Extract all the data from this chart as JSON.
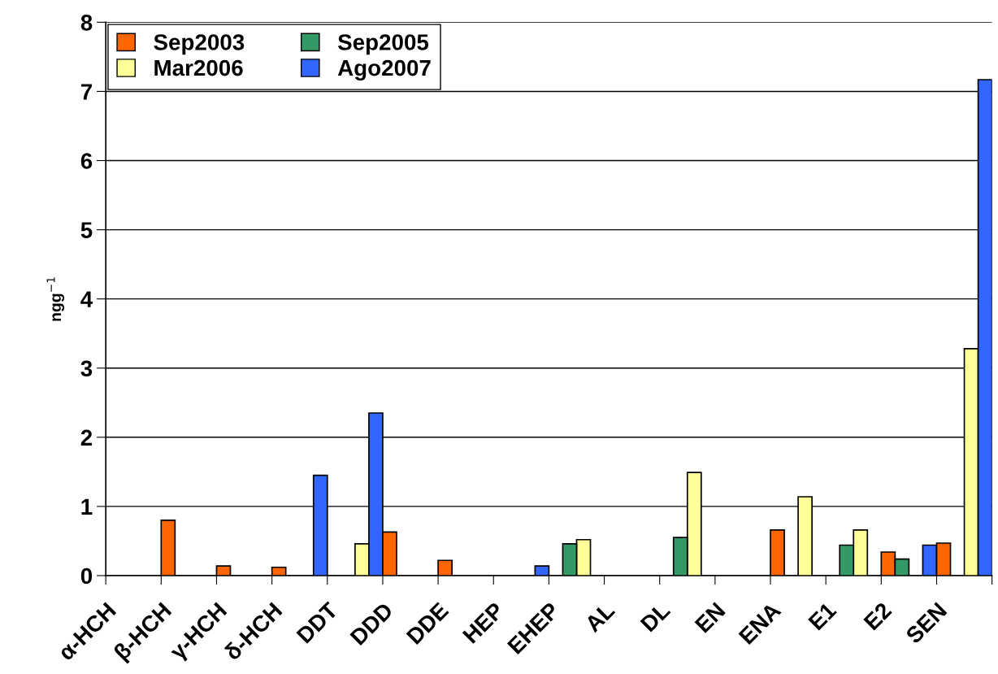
{
  "chart_data": {
    "type": "bar",
    "ylabel": "ngg$^{−1}$",
    "categories": [
      "α-HCH",
      "β-HCH",
      "γ-HCH",
      "δ-HCH",
      "DDT",
      "DDD",
      "DDE",
      "HEP",
      "EHEP",
      "AL",
      "DL",
      "EN",
      "ENA",
      "E1",
      "E2",
      "SEN",
      null
    ],
    "series": [
      {
        "name": "Mar2006",
        "color": "#ffff99",
        "values": [
          null,
          null,
          null,
          null,
          null,
          0.46,
          null,
          null,
          null,
          0.52,
          null,
          1.49,
          null,
          1.14,
          0.66,
          null,
          3.28
        ]
      },
      {
        "name": "Ago2007",
        "color": "#3366ff",
        "values": [
          null,
          null,
          null,
          null,
          1.45,
          2.35,
          null,
          null,
          0.14,
          null,
          null,
          null,
          null,
          null,
          null,
          0.44,
          7.17
        ]
      },
      {
        "name": "Sep2003",
        "color": "#ff6600",
        "values": [
          null,
          0.8,
          0.14,
          0.12,
          null,
          0.63,
          0.22,
          null,
          null,
          null,
          null,
          null,
          0.66,
          null,
          0.34,
          0.47,
          null
        ]
      },
      {
        "name": "Sep2005",
        "color": "#339966",
        "values": [
          null,
          null,
          null,
          null,
          null,
          null,
          null,
          null,
          0.46,
          null,
          0.55,
          null,
          null,
          0.44,
          0.24,
          null,
          null
        ]
      }
    ],
    "ylim": [
      0,
      8
    ],
    "yticks": [
      0,
      1,
      2,
      3,
      4,
      5,
      6,
      7,
      8
    ],
    "grid": "y",
    "legend": "top left"
  }
}
